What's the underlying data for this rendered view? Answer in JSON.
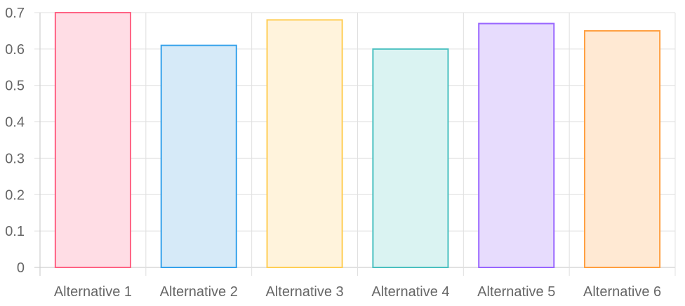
{
  "chart_data": {
    "type": "bar",
    "categories": [
      "Alternative 1",
      "Alternative 2",
      "Alternative 3",
      "Alternative 4",
      "Alternative 5",
      "Alternative 6"
    ],
    "values": [
      0.7,
      0.61,
      0.68,
      0.6,
      0.67,
      0.65
    ],
    "title": "",
    "xlabel": "",
    "ylabel": "",
    "ylim": [
      0,
      0.7
    ],
    "yticks": [
      "0",
      "0.1",
      "0.2",
      "0.3",
      "0.4",
      "0.5",
      "0.6",
      "0.7"
    ],
    "grid": true,
    "legend": "none",
    "bar_fill_colors": [
      "#ffdde5",
      "#d6eaf8",
      "#fff3dc",
      "#daf3f2",
      "#e7dcfd",
      "#ffe9d3"
    ],
    "bar_border_colors": [
      "#ff6384",
      "#36a2eb",
      "#ffce56",
      "#4bc0c0",
      "#9966ff",
      "#ff9f40"
    ]
  }
}
